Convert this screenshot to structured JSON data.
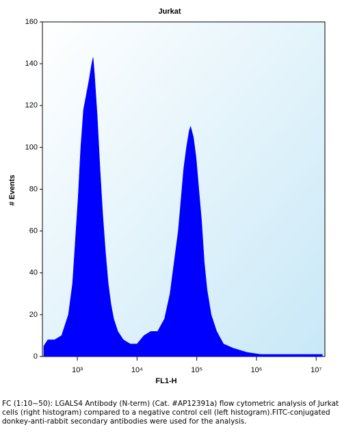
{
  "chart_data": {
    "type": "area",
    "title": "Jurkat",
    "xlabel": "FL1-H",
    "ylabel": "# Events",
    "x": [
      274,
      321,
      418,
      545,
      709,
      832,
      924,
      1026,
      1141,
      1268,
      1410,
      1567,
      1742,
      1837,
      1936,
      2153,
      2393,
      2660,
      2957,
      3288,
      3655,
      4063,
      4764,
      5888,
      7674,
      10000,
      13030,
      16980,
      22130,
      28840,
      35650,
      41780,
      48970,
      54440,
      60530,
      67290,
      74820,
      78880,
      87700,
      97500,
      108200,
      120300,
      133700,
      148600,
      174200,
      215300,
      280500,
      406400,
      690200,
      1172000,
      3381000,
      12680000
    ],
    "values": [
      5,
      8,
      8,
      10,
      20,
      35,
      55,
      75,
      100,
      118,
      125,
      132,
      140,
      143,
      135,
      115,
      90,
      68,
      50,
      35,
      25,
      18,
      12,
      8,
      6,
      6,
      10,
      12,
      12,
      18,
      30,
      45,
      60,
      75,
      90,
      100,
      108,
      110,
      105,
      95,
      80,
      65,
      45,
      32,
      20,
      12,
      6,
      4,
      2,
      1,
      1,
      1
    ],
    "color": "#0000ff",
    "xscale": "log",
    "xlim": [
      260,
      14000000
    ],
    "ylim": [
      0,
      160
    ],
    "xticks": [
      {
        "value": 1000,
        "label": "10³"
      },
      {
        "value": 10000,
        "label": "10⁴"
      },
      {
        "value": 100000,
        "label": "10⁵"
      },
      {
        "value": 1000000,
        "label": "10⁶"
      },
      {
        "value": 10000000,
        "label": "10⁷"
      }
    ],
    "yticks": [
      0,
      20,
      40,
      60,
      80,
      100,
      120,
      140,
      160
    ],
    "caption": "FC (1:10~50): LGALS4 Antibody (N-term) (Cat. #AP12391a) flow cytometric analysis of Jurkat cells (right histogram) compared to a negative control cell (left histogram).FITC-conjugated donkey-anti-rabbit secondary antibodies were used for the analysis."
  }
}
